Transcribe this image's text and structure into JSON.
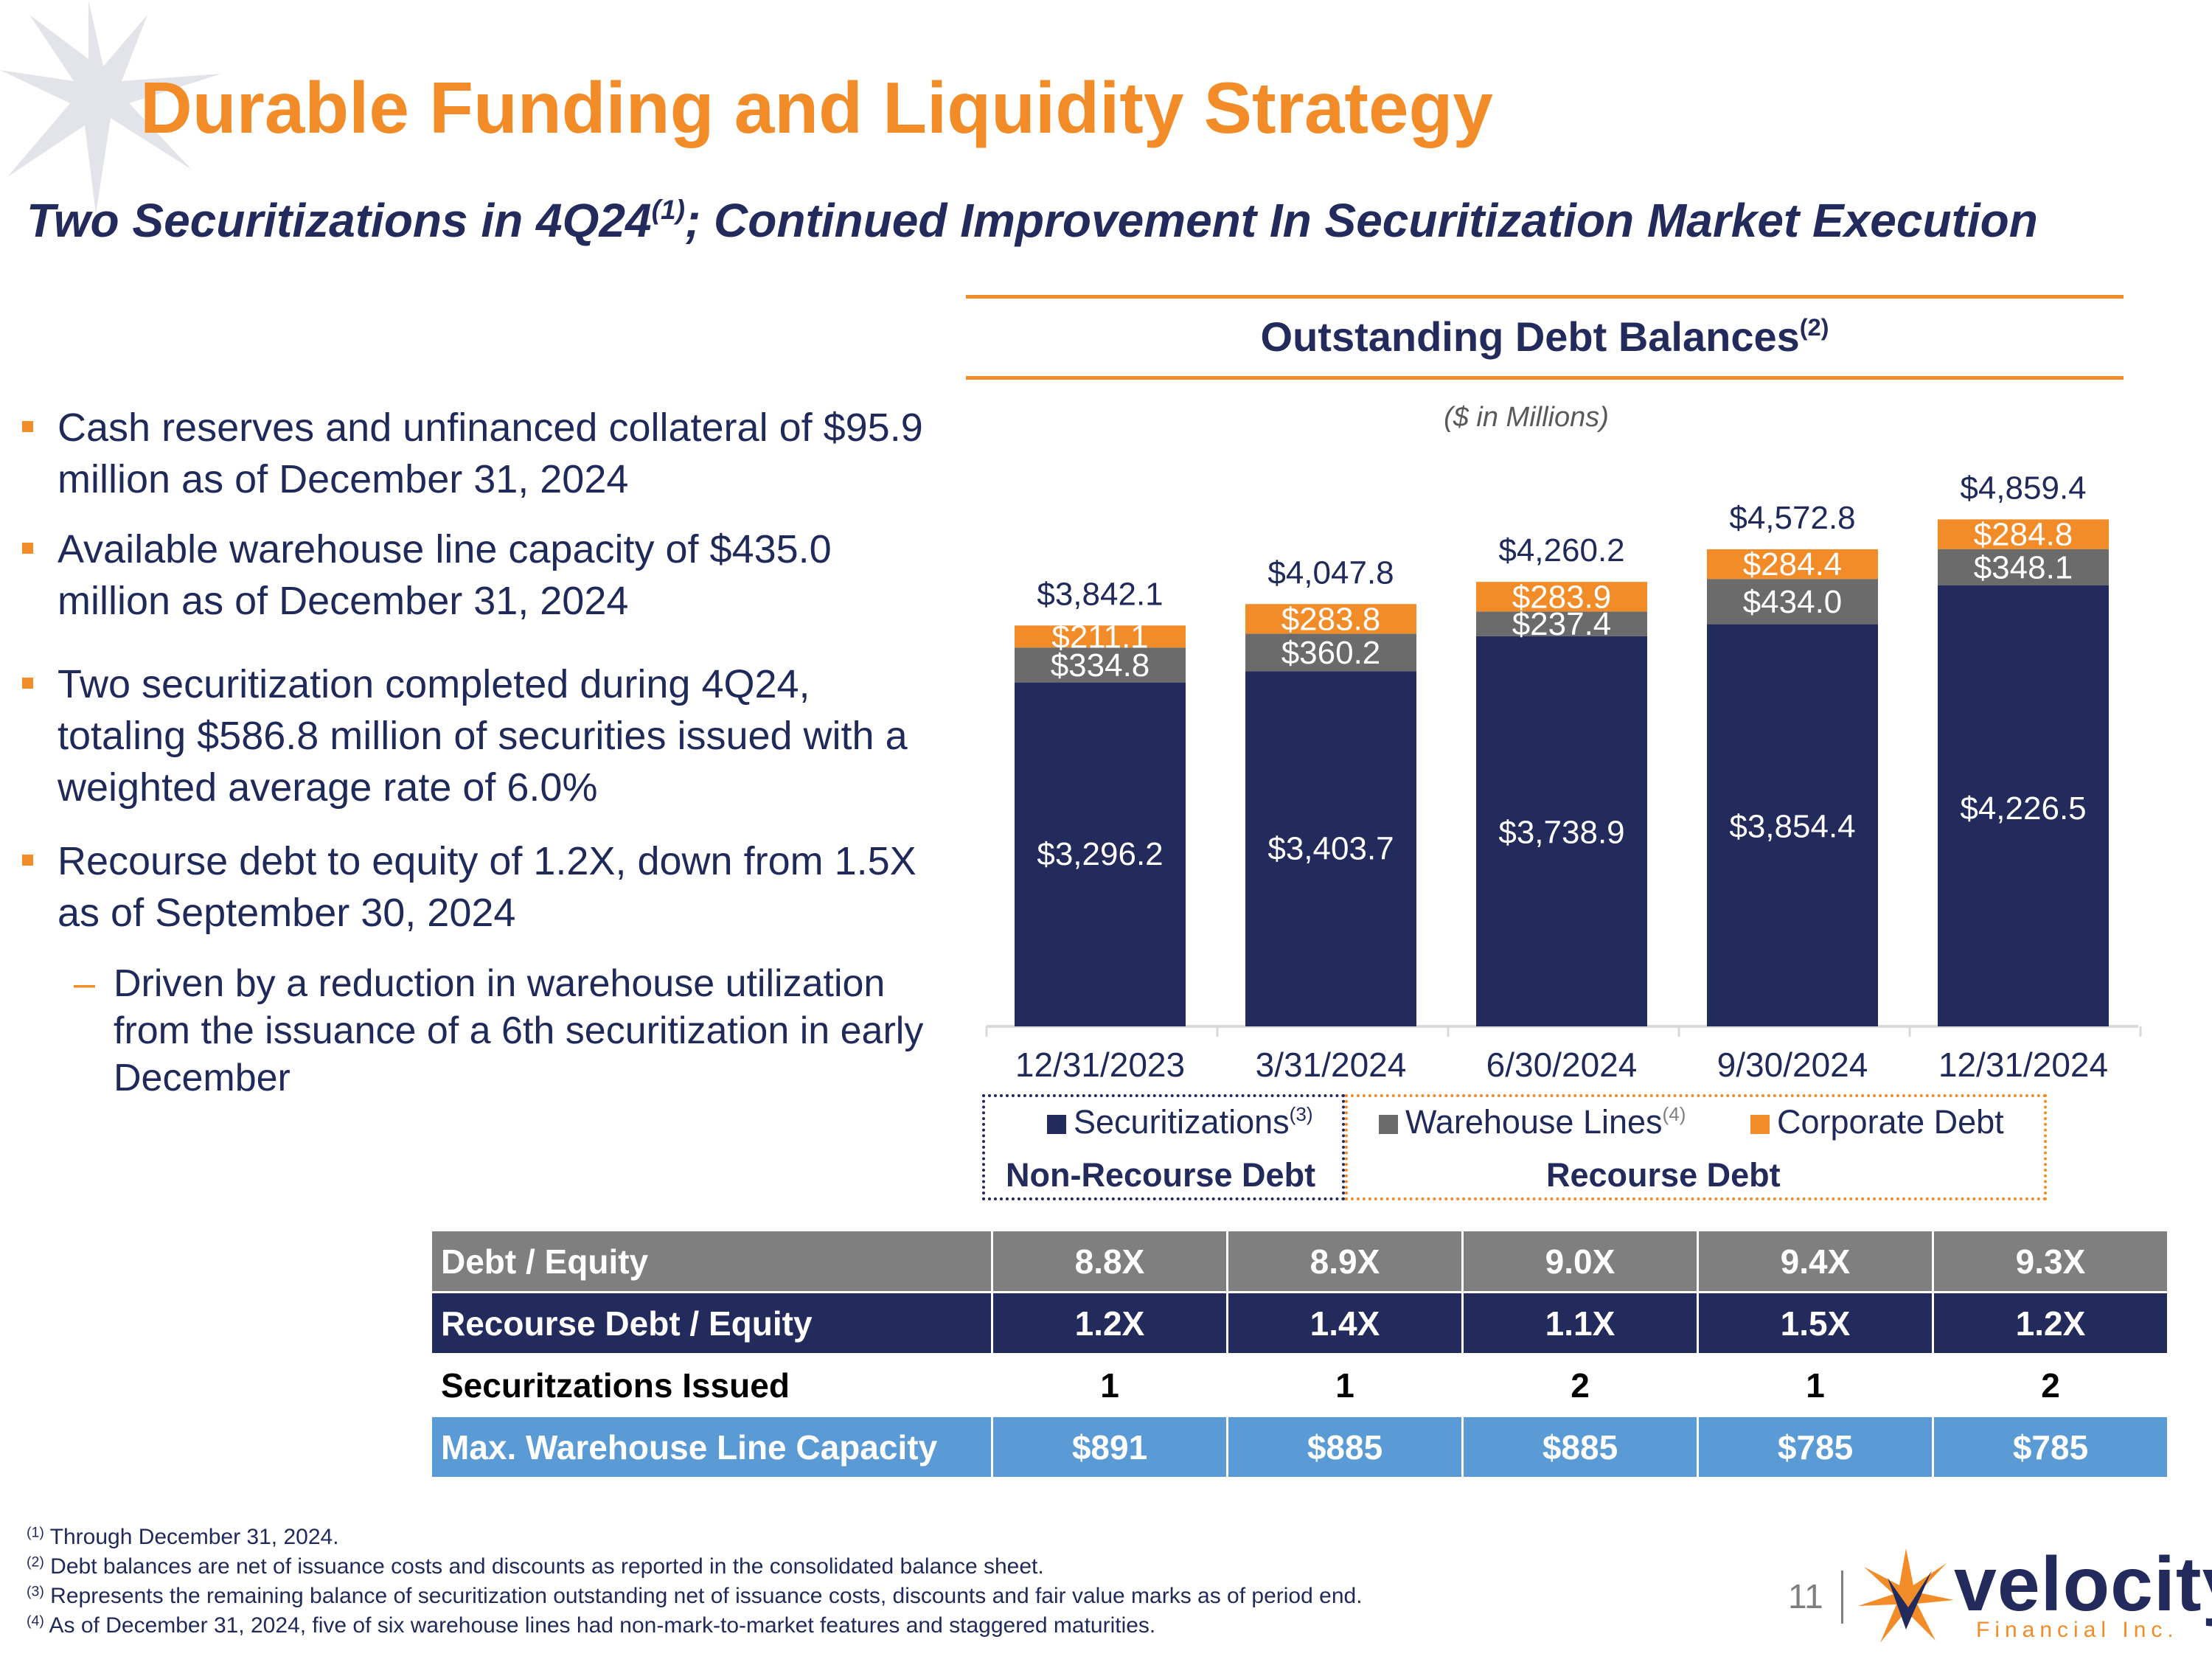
{
  "title": "Durable Funding and Liquidity Strategy",
  "subtitle": {
    "pre": "Two Securitizations in 4Q24",
    "sup": "(1)",
    "post": "; Continued Improvement In Securitization Market Execution"
  },
  "bullets": [
    "Cash reserves and unfinanced collateral of $95.9 million as of December 31, 2024",
    "Available warehouse line capacity of $435.0 million as of December 31, 2024",
    "Two securitization completed during 4Q24, totaling $586.8 million of securities issued with a weighted average rate of 6.0%",
    "Recourse debt to equity of 1.2X, down from 1.5X as of September 30, 2024"
  ],
  "sub_bullet": "Driven by a reduction in warehouse utilization from the issuance of a 6th securitization in early December",
  "chart_heading": {
    "text": "Outstanding Debt Balances",
    "sup": "(2)"
  },
  "chart_unit": "($ in Millions)",
  "chart_data": {
    "type": "bar",
    "stacked": true,
    "title": "Outstanding Debt Balances",
    "unit": "$ in Millions",
    "categories": [
      "12/31/2023",
      "3/31/2024",
      "6/30/2024",
      "9/30/2024",
      "12/31/2024"
    ],
    "series": [
      {
        "name": "Securitizations",
        "sup": "(3)",
        "color": "#232a5c",
        "values": [
          3296.2,
          3403.7,
          3738.9,
          3854.4,
          4226.5
        ],
        "labels": [
          "$3,296.2",
          "$3,403.7",
          "$3,738.9",
          "$3,854.4",
          "$4,226.5"
        ]
      },
      {
        "name": "Warehouse Lines",
        "sup": "(4)",
        "color": "#6b6b6b",
        "values": [
          334.8,
          360.2,
          237.4,
          434.0,
          348.1
        ],
        "labels": [
          "$334.8",
          "$360.2",
          "$237.4",
          "$434.0",
          "$348.1"
        ]
      },
      {
        "name": "Corporate Debt",
        "sup": "",
        "color": "#f28c28",
        "values": [
          211.1,
          283.8,
          283.9,
          284.4,
          284.8
        ],
        "labels": [
          "$211.1",
          "$283.8",
          "$283.9",
          "$284.4",
          "$284.8"
        ]
      }
    ],
    "totals": [
      3842.1,
      4047.8,
      4260.2,
      4572.8,
      4859.4
    ],
    "total_labels": [
      "$3,842.1",
      "$4,047.8",
      "$4,260.2",
      "$4,572.8",
      "$4,859.4"
    ],
    "ylim": [
      0,
      5000
    ],
    "legend_groups": [
      "Non-Recourse Debt",
      "Recourse Debt"
    ]
  },
  "table": {
    "rows": [
      {
        "label": "Debt / Equity",
        "values": [
          "8.8X",
          "8.9X",
          "9.0X",
          "9.4X",
          "9.3X"
        ]
      },
      {
        "label": "Recourse Debt / Equity",
        "values": [
          "1.2X",
          "1.4X",
          "1.1X",
          "1.5X",
          "1.2X"
        ]
      },
      {
        "label": "Securitzations Issued",
        "values": [
          "1",
          "1",
          "2",
          "1",
          "2"
        ]
      },
      {
        "label": "Max. Warehouse Line Capacity",
        "values": [
          "$891",
          "$885",
          "$885",
          "$785",
          "$785"
        ]
      }
    ]
  },
  "footnotes": [
    {
      "sup": "(1)",
      "text": " Through December 31, 2024."
    },
    {
      "sup": "(2)",
      "text": " Debt balances are net of issuance costs and discounts as reported in the consolidated balance sheet."
    },
    {
      "sup": "(3)",
      "text": " Represents the remaining balance of securitization outstanding net of issuance costs, discounts and fair value marks as of period end."
    },
    {
      "sup": "(4)",
      "text": " As of December 31, 2024, five of six warehouse lines had non-mark-to-market features and staggered maturities."
    }
  ],
  "page_number": "11",
  "logo": {
    "name": "velocity",
    "sub": "Financial Inc."
  },
  "colors": {
    "accent": "#f28c28",
    "navy": "#232a5c",
    "gray": "#6b6b6b",
    "blue": "#5b9bd5"
  }
}
